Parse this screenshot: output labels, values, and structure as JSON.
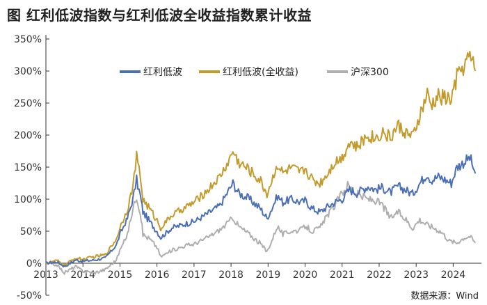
{
  "chart_data": {
    "type": "line",
    "title": "图  红利低波指数与红利低波全收益指数累计收益",
    "source": "数据来源：Wind",
    "x_ticks": [
      "2013",
      "2014",
      "2015",
      "2016",
      "2017",
      "2018",
      "2019",
      "2020",
      "2021",
      "2022",
      "2023",
      "2024"
    ],
    "y_ticks": [
      "-50%",
      "0%",
      "50%",
      "100%",
      "150%",
      "200%",
      "250%",
      "300%",
      "350%"
    ],
    "xlim": [
      2013.0,
      2024.65
    ],
    "ylim": [
      -50,
      350
    ],
    "legend_position": "top-center",
    "series": [
      {
        "name": "红利低波",
        "color": "#4a6fb5",
        "points": [
          [
            2013.0,
            0
          ],
          [
            2013.3,
            2
          ],
          [
            2013.5,
            -5
          ],
          [
            2013.8,
            5
          ],
          [
            2014.0,
            3
          ],
          [
            2014.3,
            5
          ],
          [
            2014.6,
            8
          ],
          [
            2014.9,
            28
          ],
          [
            2015.0,
            45
          ],
          [
            2015.2,
            70
          ],
          [
            2015.35,
            100
          ],
          [
            2015.45,
            130
          ],
          [
            2015.55,
            105
          ],
          [
            2015.62,
            80
          ],
          [
            2015.8,
            65
          ],
          [
            2016.0,
            50
          ],
          [
            2016.1,
            40
          ],
          [
            2016.4,
            55
          ],
          [
            2016.8,
            62
          ],
          [
            2017.0,
            65
          ],
          [
            2017.3,
            75
          ],
          [
            2017.7,
            90
          ],
          [
            2017.95,
            115
          ],
          [
            2018.05,
            125
          ],
          [
            2018.2,
            110
          ],
          [
            2018.5,
            100
          ],
          [
            2018.8,
            85
          ],
          [
            2018.97,
            70
          ],
          [
            2019.1,
            85
          ],
          [
            2019.25,
            105
          ],
          [
            2019.4,
            95
          ],
          [
            2019.6,
            100
          ],
          [
            2019.9,
            95
          ],
          [
            2020.0,
            98
          ],
          [
            2020.2,
            85
          ],
          [
            2020.4,
            80
          ],
          [
            2020.6,
            88
          ],
          [
            2020.8,
            95
          ],
          [
            2021.0,
            100
          ],
          [
            2021.2,
            115
          ],
          [
            2021.4,
            110
          ],
          [
            2021.7,
            120
          ],
          [
            2021.9,
            115
          ],
          [
            2022.1,
            118
          ],
          [
            2022.3,
            110
          ],
          [
            2022.5,
            120
          ],
          [
            2022.7,
            115
          ],
          [
            2022.9,
            108
          ],
          [
            2023.1,
            125
          ],
          [
            2023.3,
            140
          ],
          [
            2023.4,
            130
          ],
          [
            2023.6,
            135
          ],
          [
            2023.8,
            130
          ],
          [
            2023.95,
            125
          ],
          [
            2024.1,
            150
          ],
          [
            2024.3,
            158
          ],
          [
            2024.45,
            165
          ],
          [
            2024.6,
            140
          ]
        ]
      },
      {
        "name": "红利低波(全收益)",
        "color": "#c39b2c",
        "points": [
          [
            2013.0,
            0
          ],
          [
            2013.3,
            4
          ],
          [
            2013.5,
            -3
          ],
          [
            2013.8,
            8
          ],
          [
            2014.0,
            6
          ],
          [
            2014.3,
            10
          ],
          [
            2014.6,
            13
          ],
          [
            2014.9,
            37
          ],
          [
            2015.0,
            56
          ],
          [
            2015.2,
            84
          ],
          [
            2015.35,
            120
          ],
          [
            2015.45,
            165
          ],
          [
            2015.55,
            135
          ],
          [
            2015.62,
            100
          ],
          [
            2015.8,
            85
          ],
          [
            2016.0,
            67
          ],
          [
            2016.1,
            55
          ],
          [
            2016.4,
            75
          ],
          [
            2016.8,
            88
          ],
          [
            2017.0,
            95
          ],
          [
            2017.3,
            110
          ],
          [
            2017.7,
            135
          ],
          [
            2017.95,
            160
          ],
          [
            2018.05,
            175
          ],
          [
            2018.2,
            158
          ],
          [
            2018.5,
            145
          ],
          [
            2018.8,
            128
          ],
          [
            2018.97,
            108
          ],
          [
            2019.1,
            128
          ],
          [
            2019.25,
            155
          ],
          [
            2019.4,
            140
          ],
          [
            2019.6,
            148
          ],
          [
            2019.9,
            142
          ],
          [
            2020.0,
            148
          ],
          [
            2020.2,
            130
          ],
          [
            2020.4,
            125
          ],
          [
            2020.6,
            140
          ],
          [
            2020.8,
            158
          ],
          [
            2021.0,
            165
          ],
          [
            2021.2,
            190
          ],
          [
            2021.4,
            180
          ],
          [
            2021.7,
            200
          ],
          [
            2021.9,
            195
          ],
          [
            2022.1,
            205
          ],
          [
            2022.3,
            195
          ],
          [
            2022.5,
            215
          ],
          [
            2022.7,
            205
          ],
          [
            2022.9,
            195
          ],
          [
            2023.1,
            230
          ],
          [
            2023.3,
            262
          ],
          [
            2023.4,
            245
          ],
          [
            2023.6,
            260
          ],
          [
            2023.8,
            258
          ],
          [
            2023.95,
            255
          ],
          [
            2024.1,
            290
          ],
          [
            2024.3,
            310
          ],
          [
            2024.45,
            322
          ],
          [
            2024.6,
            300
          ]
        ]
      },
      {
        "name": "沪深300",
        "color": "#aeaeae",
        "points": [
          [
            2013.0,
            0
          ],
          [
            2013.3,
            -3
          ],
          [
            2013.5,
            -15
          ],
          [
            2013.8,
            -5
          ],
          [
            2014.0,
            -12
          ],
          [
            2014.3,
            -15
          ],
          [
            2014.6,
            -10
          ],
          [
            2014.9,
            5
          ],
          [
            2015.0,
            20
          ],
          [
            2015.2,
            45
          ],
          [
            2015.35,
            85
          ],
          [
            2015.45,
            105
          ],
          [
            2015.55,
            80
          ],
          [
            2015.62,
            45
          ],
          [
            2015.8,
            38
          ],
          [
            2016.0,
            25
          ],
          [
            2016.1,
            10
          ],
          [
            2016.4,
            20
          ],
          [
            2016.8,
            28
          ],
          [
            2017.0,
            30
          ],
          [
            2017.3,
            38
          ],
          [
            2017.7,
            52
          ],
          [
            2017.95,
            65
          ],
          [
            2018.05,
            72
          ],
          [
            2018.2,
            58
          ],
          [
            2018.5,
            45
          ],
          [
            2018.8,
            30
          ],
          [
            2018.97,
            18
          ],
          [
            2019.1,
            35
          ],
          [
            2019.25,
            58
          ],
          [
            2019.4,
            45
          ],
          [
            2019.6,
            50
          ],
          [
            2019.9,
            52
          ],
          [
            2020.0,
            58
          ],
          [
            2020.2,
            50
          ],
          [
            2020.4,
            55
          ],
          [
            2020.6,
            75
          ],
          [
            2020.8,
            90
          ],
          [
            2021.0,
            110
          ],
          [
            2021.15,
            122
          ],
          [
            2021.4,
            108
          ],
          [
            2021.7,
            100
          ],
          [
            2021.9,
            98
          ],
          [
            2022.1,
            90
          ],
          [
            2022.3,
            70
          ],
          [
            2022.5,
            80
          ],
          [
            2022.7,
            70
          ],
          [
            2022.9,
            55
          ],
          [
            2023.1,
            68
          ],
          [
            2023.3,
            60
          ],
          [
            2023.5,
            55
          ],
          [
            2023.7,
            48
          ],
          [
            2023.9,
            35
          ],
          [
            2024.1,
            32
          ],
          [
            2024.3,
            40
          ],
          [
            2024.45,
            42
          ],
          [
            2024.6,
            32
          ]
        ]
      }
    ]
  }
}
